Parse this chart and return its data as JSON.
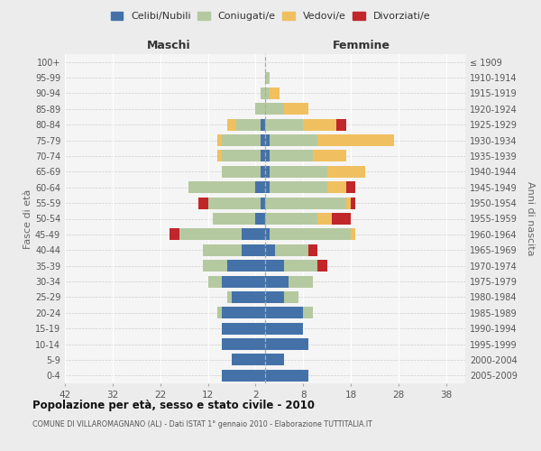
{
  "age_groups": [
    "0-4",
    "5-9",
    "10-14",
    "15-19",
    "20-24",
    "25-29",
    "30-34",
    "35-39",
    "40-44",
    "45-49",
    "50-54",
    "55-59",
    "60-64",
    "65-69",
    "70-74",
    "75-79",
    "80-84",
    "85-89",
    "90-94",
    "95-99",
    "100+"
  ],
  "birth_years": [
    "2005-2009",
    "2000-2004",
    "1995-1999",
    "1990-1994",
    "1985-1989",
    "1980-1984",
    "1975-1979",
    "1970-1974",
    "1965-1969",
    "1960-1964",
    "1955-1959",
    "1950-1954",
    "1945-1949",
    "1940-1944",
    "1935-1939",
    "1930-1934",
    "1925-1929",
    "1920-1924",
    "1915-1919",
    "1910-1914",
    "≤ 1909"
  ],
  "maschi": {
    "celibi": [
      9,
      7,
      9,
      9,
      9,
      7,
      9,
      8,
      5,
      5,
      2,
      1,
      2,
      1,
      1,
      1,
      1,
      0,
      0,
      0,
      0
    ],
    "coniugati": [
      0,
      0,
      0,
      0,
      1,
      1,
      3,
      5,
      8,
      13,
      9,
      11,
      14,
      8,
      8,
      8,
      5,
      2,
      1,
      0,
      0
    ],
    "vedovi": [
      0,
      0,
      0,
      0,
      0,
      0,
      0,
      0,
      0,
      0,
      0,
      0,
      0,
      0,
      1,
      1,
      2,
      0,
      0,
      0,
      0
    ],
    "divorziati": [
      0,
      0,
      0,
      0,
      0,
      0,
      0,
      0,
      0,
      2,
      0,
      2,
      0,
      0,
      0,
      0,
      0,
      0,
      0,
      0,
      0
    ]
  },
  "femmine": {
    "nubili": [
      9,
      4,
      9,
      8,
      8,
      4,
      5,
      4,
      2,
      1,
      0,
      0,
      1,
      1,
      1,
      1,
      0,
      0,
      0,
      0,
      0
    ],
    "coniugate": [
      0,
      0,
      0,
      0,
      2,
      3,
      5,
      7,
      7,
      17,
      11,
      17,
      12,
      12,
      9,
      10,
      8,
      4,
      1,
      1,
      0
    ],
    "vedove": [
      0,
      0,
      0,
      0,
      0,
      0,
      0,
      0,
      0,
      1,
      3,
      1,
      4,
      8,
      7,
      16,
      7,
      5,
      2,
      0,
      0
    ],
    "divorziate": [
      0,
      0,
      0,
      0,
      0,
      0,
      0,
      2,
      2,
      0,
      4,
      1,
      2,
      0,
      0,
      0,
      2,
      0,
      0,
      0,
      0
    ]
  },
  "colors": {
    "celibi": "#4472a8",
    "coniugati": "#b5c9a0",
    "vedovi": "#f0c060",
    "divorziati": "#c0262a"
  },
  "xlim": 42,
  "xtick_step": 10,
  "title": "Popolazione per età, sesso e stato civile - 2010",
  "subtitle": "COMUNE DI VILLAROMAGNANO (AL) - Dati ISTAT 1° gennaio 2010 - Elaborazione TUTTITALIA.IT",
  "ylabel": "Fasce di età",
  "ylabel_right": "Anni di nascita",
  "legend_labels": [
    "Celibi/Nubili",
    "Coniugati/e",
    "Vedovi/e",
    "Divorziati/e"
  ],
  "bg_color": "#ececec",
  "plot_bg_color": "#f5f5f5"
}
